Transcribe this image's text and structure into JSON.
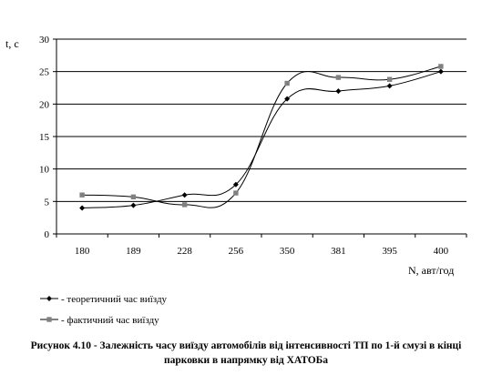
{
  "chart_data": {
    "type": "line",
    "ylabel": "t, с",
    "xlabel": "N, авт/год",
    "categories": [
      "180",
      "189",
      "228",
      "256",
      "350",
      "381",
      "395",
      "400"
    ],
    "ylim": [
      0,
      30
    ],
    "yticks": [
      0,
      5,
      10,
      15,
      20,
      25,
      30
    ],
    "grid": true,
    "legend_position": "bottom-left",
    "series": [
      {
        "name": "- теоретичний час виїзду",
        "marker": "diamond",
        "color": "#000000",
        "values": [
          4.0,
          4.4,
          6.0,
          7.6,
          20.8,
          22.0,
          22.8,
          25.0
        ]
      },
      {
        "name": "- фактичний час виїзду",
        "marker": "square",
        "color": "#808080",
        "values": [
          6.0,
          5.7,
          4.5,
          6.3,
          23.2,
          24.1,
          23.8,
          25.8
        ]
      }
    ]
  },
  "caption": {
    "line1": "Рисунок 4.10 - Залежність часу виїзду автомобілів від інтенсивності ТП по 1-й смузі в кінці",
    "line2": "парковки в напрямку від ХАТОБа"
  }
}
